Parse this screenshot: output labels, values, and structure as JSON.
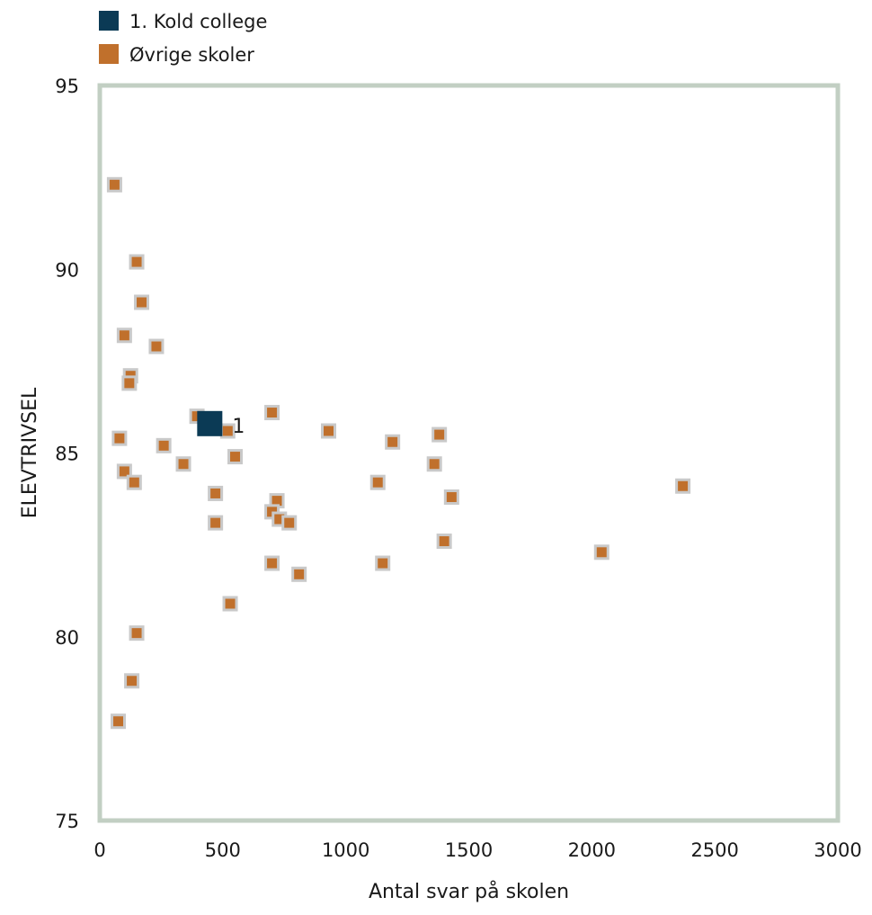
{
  "chart_data": {
    "type": "scatter",
    "title": "",
    "xlabel": "Antal svar på skolen",
    "ylabel": "ELEVTRIVSEL",
    "xlim": [
      0,
      3000
    ],
    "ylim": [
      75,
      95
    ],
    "x_ticks": [
      "0",
      "500",
      "1000",
      "1500",
      "2000",
      "2500",
      "3000"
    ],
    "y_ticks": [
      "75",
      "80",
      "85",
      "90",
      "95"
    ],
    "grid": false,
    "legend_position": "top-left",
    "series": [
      {
        "name": "1. Kold college",
        "color": "#0b3a55",
        "points": [
          {
            "x": 447,
            "y": 85.8,
            "label": "1"
          }
        ]
      },
      {
        "name": "Øvrige skoler",
        "color": "#c0702c",
        "points": [
          {
            "x": 60,
            "y": 92.3
          },
          {
            "x": 150,
            "y": 90.2
          },
          {
            "x": 170,
            "y": 89.1
          },
          {
            "x": 100,
            "y": 88.2
          },
          {
            "x": 230,
            "y": 87.9
          },
          {
            "x": 125,
            "y": 87.1
          },
          {
            "x": 120,
            "y": 86.9
          },
          {
            "x": 395,
            "y": 86.0
          },
          {
            "x": 700,
            "y": 86.1
          },
          {
            "x": 520,
            "y": 85.6
          },
          {
            "x": 930,
            "y": 85.6
          },
          {
            "x": 1380,
            "y": 85.5
          },
          {
            "x": 80,
            "y": 85.4
          },
          {
            "x": 1190,
            "y": 85.3
          },
          {
            "x": 260,
            "y": 85.2
          },
          {
            "x": 550,
            "y": 84.9
          },
          {
            "x": 340,
            "y": 84.7
          },
          {
            "x": 1360,
            "y": 84.7
          },
          {
            "x": 100,
            "y": 84.5
          },
          {
            "x": 140,
            "y": 84.2
          },
          {
            "x": 1130,
            "y": 84.2
          },
          {
            "x": 2370,
            "y": 84.1
          },
          {
            "x": 470,
            "y": 83.9
          },
          {
            "x": 1430,
            "y": 83.8
          },
          {
            "x": 720,
            "y": 83.7
          },
          {
            "x": 700,
            "y": 83.4
          },
          {
            "x": 730,
            "y": 83.2
          },
          {
            "x": 470,
            "y": 83.1
          },
          {
            "x": 770,
            "y": 83.1
          },
          {
            "x": 1400,
            "y": 82.6
          },
          {
            "x": 2040,
            "y": 82.3
          },
          {
            "x": 700,
            "y": 82.0
          },
          {
            "x": 1150,
            "y": 82.0
          },
          {
            "x": 810,
            "y": 81.7
          },
          {
            "x": 530,
            "y": 80.9
          },
          {
            "x": 150,
            "y": 80.1
          },
          {
            "x": 130,
            "y": 78.8
          },
          {
            "x": 75,
            "y": 77.7
          }
        ]
      }
    ]
  }
}
